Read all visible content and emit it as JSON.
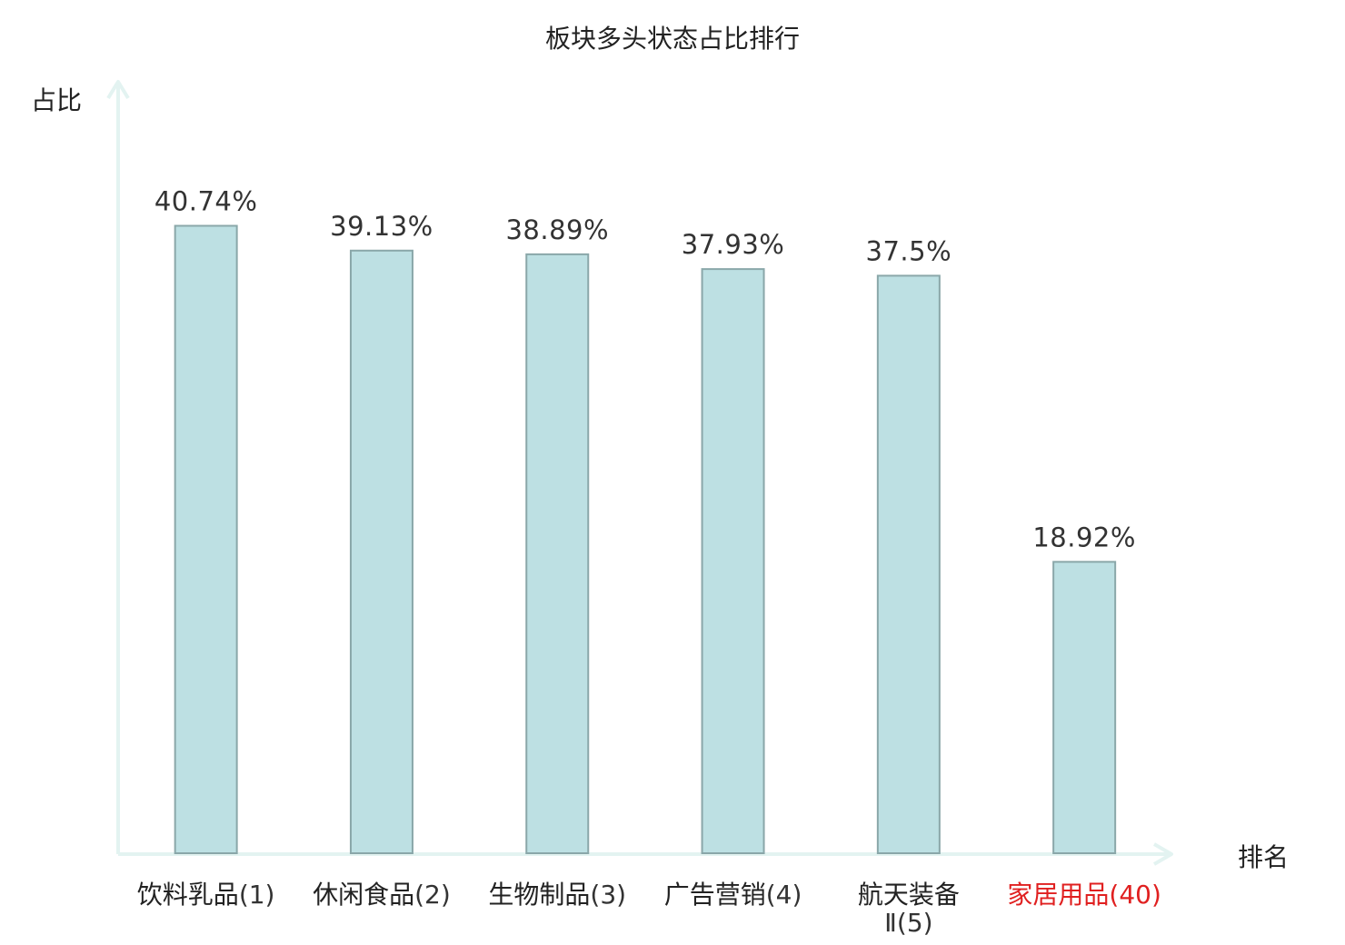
{
  "chart_data": {
    "type": "bar",
    "title": "板块多头状态占比排行",
    "xlabel": "排名",
    "ylabel": "占比",
    "categories": [
      {
        "name": "饮料乳品",
        "rank": "(1)",
        "highlight": false
      },
      {
        "name": "休闲食品",
        "rank": "(2)",
        "highlight": false
      },
      {
        "name": "生物制品",
        "rank": "(3)",
        "highlight": false
      },
      {
        "name": "广告营销",
        "rank": "(4)",
        "highlight": false
      },
      {
        "name": "航天装备",
        "rank": "Ⅱ(5)",
        "highlight": false
      },
      {
        "name": "家居用品",
        "rank": "(40)",
        "highlight": true
      }
    ],
    "values": [
      40.74,
      39.13,
      38.89,
      37.93,
      37.5,
      18.92
    ],
    "value_labels": [
      "40.74%",
      "39.13%",
      "38.89%",
      "37.93%",
      "37.5%",
      "18.92%"
    ],
    "ylim": [
      0,
      45
    ],
    "grid": false,
    "colors": {
      "bar_fill": "#bde0e3",
      "bar_stroke": "#8aa7a9",
      "axis": "#e3f3f1",
      "text": "#222222",
      "value_text": "#333333",
      "highlight": "#e02020"
    }
  }
}
